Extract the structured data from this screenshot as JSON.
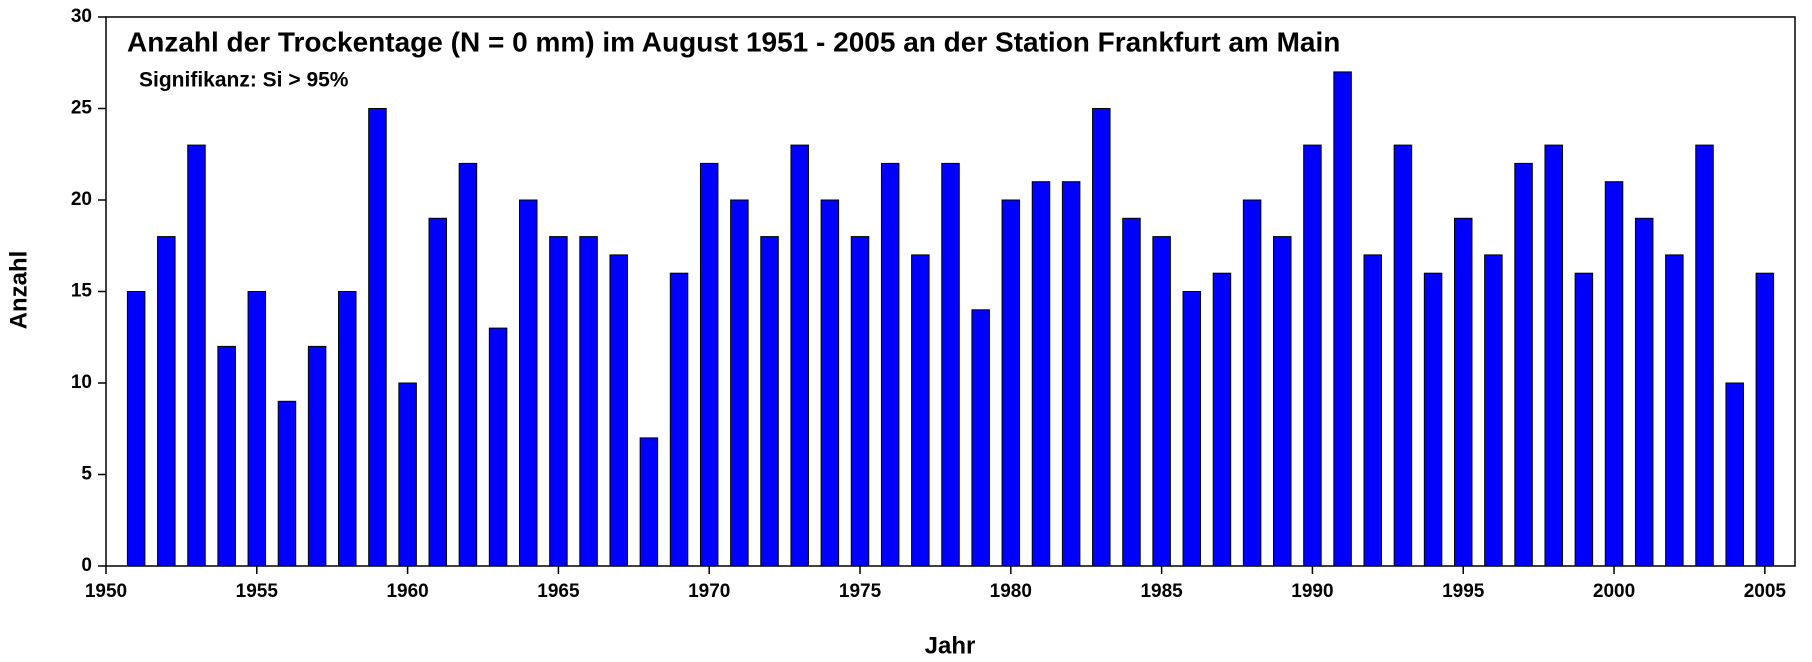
{
  "chart_data": {
    "type": "bar",
    "title": "Anzahl der Trockentage (N = 0 mm) im August 1951 - 2005 an der Station Frankfurt am Main",
    "subtitle": "Signifikanz: Si > 95%",
    "xlabel": "Jahr",
    "ylabel": "Anzahl",
    "x": [
      1951,
      1952,
      1953,
      1954,
      1955,
      1956,
      1957,
      1958,
      1959,
      1960,
      1961,
      1962,
      1963,
      1964,
      1965,
      1966,
      1967,
      1968,
      1969,
      1970,
      1971,
      1972,
      1973,
      1974,
      1975,
      1976,
      1977,
      1978,
      1979,
      1980,
      1981,
      1982,
      1983,
      1984,
      1985,
      1986,
      1987,
      1988,
      1989,
      1990,
      1991,
      1992,
      1993,
      1994,
      1995,
      1996,
      1997,
      1998,
      1999,
      2000,
      2001,
      2002,
      2003,
      2004,
      2005
    ],
    "values": [
      15,
      18,
      23,
      12,
      15,
      9,
      12,
      15,
      25,
      10,
      19,
      22,
      13,
      20,
      18,
      18,
      17,
      7,
      16,
      22,
      20,
      18,
      23,
      20,
      18,
      22,
      17,
      22,
      14,
      20,
      21,
      21,
      25,
      19,
      18,
      15,
      16,
      20,
      18,
      23,
      27,
      17,
      23,
      16,
      19,
      17,
      22,
      23,
      16,
      21,
      19,
      17,
      23,
      10,
      16
    ],
    "color": "#0000ff",
    "xlim": [
      1950,
      2006
    ],
    "xticks": [
      1950,
      1955,
      1960,
      1965,
      1970,
      1975,
      1980,
      1985,
      1990,
      1995,
      2000,
      2005
    ],
    "ylim": [
      0,
      30
    ],
    "yticks": [
      0,
      5,
      10,
      15,
      20,
      25,
      30
    ]
  }
}
